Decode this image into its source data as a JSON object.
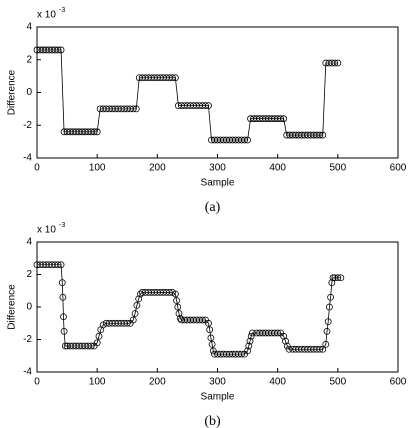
{
  "chart_data": [
    {
      "type": "line",
      "caption": "(a)",
      "xlabel": "Sample",
      "ylabel": "Difference",
      "y_multiplier": "x 10",
      "y_multiplier_exponent": "-3",
      "color": "#000000",
      "marker": "o",
      "xlim": [
        0,
        600
      ],
      "xticks": [
        0,
        100,
        200,
        300,
        400,
        500,
        600
      ],
      "ylim": [
        -4,
        4
      ],
      "yticks": [
        -4,
        -2,
        0,
        2,
        4
      ],
      "x": [
        0,
        5,
        10,
        15,
        20,
        25,
        30,
        35,
        40,
        45,
        50,
        55,
        60,
        65,
        70,
        75,
        80,
        85,
        90,
        95,
        100,
        105,
        110,
        115,
        120,
        125,
        130,
        135,
        140,
        145,
        150,
        155,
        160,
        165,
        170,
        175,
        180,
        185,
        190,
        195,
        200,
        205,
        210,
        215,
        220,
        225,
        230,
        235,
        240,
        245,
        250,
        255,
        260,
        265,
        270,
        275,
        280,
        285,
        290,
        295,
        300,
        305,
        310,
        315,
        320,
        325,
        330,
        335,
        340,
        345,
        350,
        355,
        360,
        365,
        370,
        375,
        380,
        385,
        390,
        395,
        400,
        405,
        410,
        415,
        420,
        425,
        430,
        435,
        440,
        445,
        450,
        455,
        460,
        465,
        470,
        475,
        480,
        485,
        490,
        495,
        500
      ],
      "values": [
        2.6,
        2.6,
        2.6,
        2.6,
        2.6,
        2.6,
        2.6,
        2.6,
        2.6,
        -2.4,
        -2.4,
        -2.4,
        -2.4,
        -2.4,
        -2.4,
        -2.4,
        -2.4,
        -2.4,
        -2.4,
        -2.4,
        -2.4,
        -1.0,
        -1.0,
        -1.0,
        -1.0,
        -1.0,
        -1.0,
        -1.0,
        -1.0,
        -1.0,
        -1.0,
        -1.0,
        -1.0,
        -1.0,
        0.9,
        0.9,
        0.9,
        0.9,
        0.9,
        0.9,
        0.9,
        0.9,
        0.9,
        0.9,
        0.9,
        0.9,
        0.9,
        -0.8,
        -0.8,
        -0.8,
        -0.8,
        -0.8,
        -0.8,
        -0.8,
        -0.8,
        -0.8,
        -0.8,
        -0.8,
        -2.9,
        -2.9,
        -2.9,
        -2.9,
        -2.9,
        -2.9,
        -2.9,
        -2.9,
        -2.9,
        -2.9,
        -2.9,
        -2.9,
        -2.9,
        -1.6,
        -1.6,
        -1.6,
        -1.6,
        -1.6,
        -1.6,
        -1.6,
        -1.6,
        -1.6,
        -1.6,
        -1.6,
        -1.6,
        -2.6,
        -2.6,
        -2.6,
        -2.6,
        -2.6,
        -2.6,
        -2.6,
        -2.6,
        -2.6,
        -2.6,
        -2.6,
        -2.6,
        -2.6,
        1.8,
        1.8,
        1.8,
        1.8,
        1.8
      ]
    },
    {
      "type": "line",
      "caption": "(b)",
      "xlabel": "Sample",
      "ylabel": "Difference",
      "y_multiplier": "x 10",
      "y_multiplier_exponent": "-3",
      "color": "#000000",
      "marker": "o",
      "xlim": [
        0,
        600
      ],
      "xticks": [
        0,
        100,
        200,
        300,
        400,
        500,
        600
      ],
      "ylim": [
        -4,
        4
      ],
      "yticks": [
        -4,
        -2,
        0,
        2,
        4
      ],
      "x": [
        0,
        5,
        10,
        15,
        20,
        25,
        30,
        35,
        40,
        42,
        43,
        44,
        45,
        47,
        50,
        55,
        60,
        65,
        70,
        75,
        80,
        85,
        90,
        95,
        100,
        103,
        106,
        110,
        115,
        120,
        125,
        130,
        135,
        140,
        145,
        150,
        155,
        160,
        163,
        166,
        169,
        172,
        175,
        180,
        185,
        190,
        195,
        200,
        205,
        210,
        215,
        220,
        225,
        230,
        232,
        234,
        236,
        238,
        240,
        245,
        250,
        255,
        260,
        265,
        270,
        275,
        280,
        285,
        287,
        289,
        291,
        293,
        295,
        300,
        305,
        310,
        315,
        320,
        325,
        330,
        335,
        340,
        345,
        350,
        352,
        354,
        356,
        358,
        365,
        370,
        375,
        380,
        385,
        390,
        395,
        400,
        405,
        410,
        413,
        416,
        419,
        425,
        430,
        435,
        440,
        445,
        450,
        455,
        460,
        465,
        470,
        475,
        480,
        482,
        484,
        486,
        488,
        490,
        492,
        495,
        500,
        505
      ],
      "values": [
        2.6,
        2.6,
        2.6,
        2.6,
        2.6,
        2.6,
        2.6,
        2.6,
        2.6,
        1.5,
        0.6,
        -0.6,
        -1.5,
        -2.4,
        -2.4,
        -2.4,
        -2.4,
        -2.4,
        -2.4,
        -2.4,
        -2.4,
        -2.4,
        -2.4,
        -2.4,
        -2.2,
        -1.8,
        -1.4,
        -1.1,
        -1.0,
        -1.0,
        -1.0,
        -1.0,
        -1.0,
        -1.0,
        -1.0,
        -1.0,
        -1.0,
        -0.8,
        -0.4,
        0.1,
        0.5,
        0.8,
        0.9,
        0.9,
        0.9,
        0.9,
        0.9,
        0.9,
        0.9,
        0.9,
        0.9,
        0.9,
        0.9,
        0.8,
        0.4,
        0.0,
        -0.4,
        -0.7,
        -0.8,
        -0.8,
        -0.8,
        -0.8,
        -0.8,
        -0.8,
        -0.8,
        -0.8,
        -0.8,
        -1.0,
        -1.4,
        -1.9,
        -2.3,
        -2.7,
        -2.9,
        -2.9,
        -2.9,
        -2.9,
        -2.9,
        -2.9,
        -2.9,
        -2.9,
        -2.9,
        -2.9,
        -2.9,
        -2.7,
        -2.4,
        -2.1,
        -1.8,
        -1.6,
        -1.6,
        -1.6,
        -1.6,
        -1.6,
        -1.6,
        -1.6,
        -1.6,
        -1.6,
        -1.6,
        -1.8,
        -2.1,
        -2.4,
        -2.6,
        -2.6,
        -2.6,
        -2.6,
        -2.6,
        -2.6,
        -2.6,
        -2.6,
        -2.6,
        -2.6,
        -2.6,
        -2.6,
        -2.3,
        -1.5,
        -0.9,
        0.0,
        0.6,
        1.5,
        1.8,
        1.8,
        1.8,
        1.8
      ]
    }
  ]
}
